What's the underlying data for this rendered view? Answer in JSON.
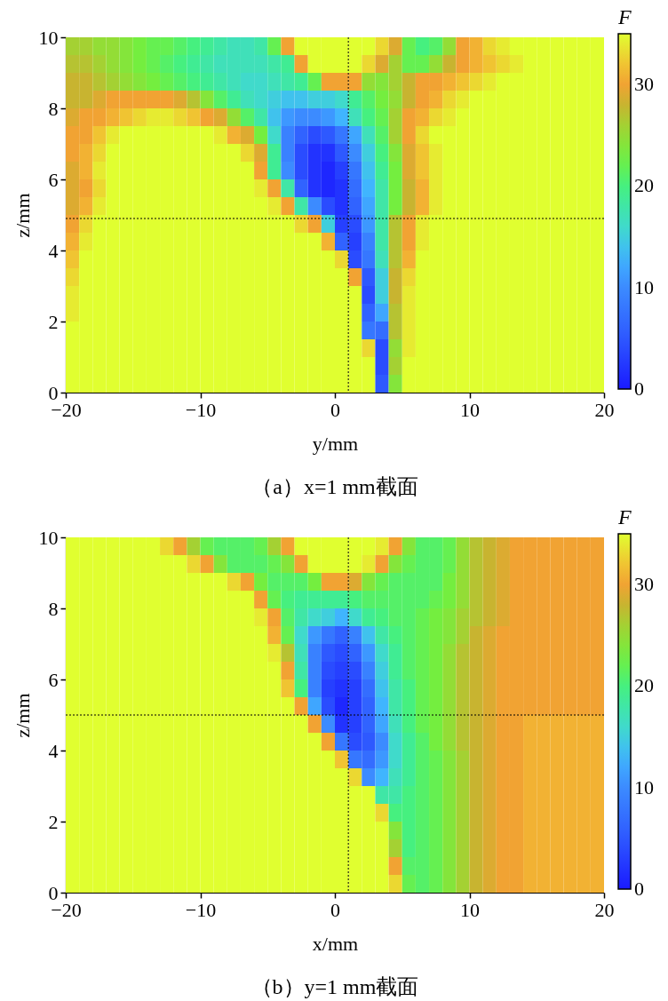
{
  "chart_data": [
    {
      "type": "heatmap",
      "title": "（a）x=1 mm截面",
      "xlabel": "y/mm",
      "ylabel": "z/mm",
      "clabel": "F",
      "x": [
        -19.5,
        -18.5,
        -17.5,
        -16.5,
        -15.5,
        -14.5,
        -13.5,
        -12.5,
        -11.5,
        -10.5,
        -9.5,
        -8.5,
        -7.5,
        -6.5,
        -5.5,
        -4.5,
        -3.5,
        -2.5,
        -1.5,
        -0.5,
        0.5,
        1.5,
        2.5,
        3.5,
        4.5,
        5.5,
        6.5,
        7.5,
        8.5,
        9.5,
        10.5,
        11.5,
        12.5,
        13.5,
        14.5,
        15.5,
        16.5,
        17.5,
        18.5,
        19.5
      ],
      "y": [
        9.75,
        9.25,
        8.75,
        8.25,
        7.75,
        7.25,
        6.75,
        6.25,
        5.75,
        5.25,
        4.75,
        4.25,
        3.75,
        3.25,
        2.75,
        2.25,
        1.75,
        1.25,
        0.75,
        0.25
      ],
      "xlim": [
        -20,
        20
      ],
      "ylim": [
        0,
        10
      ],
      "xticks": [
        -20,
        -10,
        0,
        10,
        20
      ],
      "yticks": [
        0,
        2,
        4,
        6,
        8,
        10
      ],
      "clim": [
        0,
        35
      ],
      "cticks": [
        0,
        10,
        20,
        30
      ],
      "ref_lines": [
        {
          "axis": "x",
          "value": 1,
          "line_style": "dotted",
          "color": "#000000"
        },
        {
          "axis": "y",
          "value": 4.9,
          "line_style": "dotted",
          "color": "#000000"
        }
      ],
      "cells": [
        [
          26,
          26,
          25,
          25,
          24,
          23,
          22,
          22,
          21,
          20,
          19,
          18,
          17,
          17,
          18,
          22,
          30,
          35,
          35,
          35,
          35,
          35,
          35,
          33,
          29,
          22,
          20,
          21,
          25,
          30,
          31,
          33,
          34,
          35,
          35,
          35,
          35,
          35,
          35,
          35
        ],
        [
          27,
          27,
          26,
          25,
          24,
          23,
          22,
          21,
          20,
          19,
          18,
          17,
          17,
          17,
          17,
          18,
          19,
          30,
          35,
          35,
          35,
          35,
          33,
          29,
          26,
          22,
          22,
          25,
          28,
          30,
          31,
          32,
          33,
          34,
          35,
          35,
          35,
          35,
          35,
          35
        ],
        [
          28,
          28,
          27,
          26,
          25,
          24,
          23,
          22,
          21,
          20,
          19,
          18,
          17,
          16,
          16,
          17,
          18,
          19,
          22,
          30,
          30,
          30,
          25,
          24,
          26,
          28,
          30,
          30,
          31,
          32,
          33,
          34,
          35,
          35,
          35,
          35,
          35,
          35,
          35,
          35
        ],
        [
          28,
          28,
          29,
          30,
          30,
          30,
          30,
          30,
          29,
          27,
          24,
          21,
          19,
          17,
          16,
          15,
          14,
          14,
          15,
          15,
          16,
          19,
          21,
          23,
          25,
          28,
          30,
          31,
          33,
          34,
          35,
          35,
          35,
          35,
          35,
          35,
          35,
          35,
          35,
          35
        ],
        [
          29,
          30,
          30,
          31,
          32,
          33,
          34,
          34,
          33,
          32,
          30,
          29,
          25,
          21,
          18,
          14,
          11,
          10,
          10,
          11,
          13,
          17,
          20,
          22,
          26,
          30,
          31,
          33,
          34,
          35,
          35,
          35,
          35,
          35,
          35,
          35,
          35,
          35,
          35,
          35
        ],
        [
          30,
          30,
          32,
          34,
          35,
          35,
          35,
          35,
          35,
          35,
          35,
          34,
          31,
          29,
          23,
          16,
          9,
          6,
          4,
          5,
          8,
          12,
          17,
          21,
          26,
          30,
          33,
          35,
          35,
          35,
          35,
          35,
          35,
          35,
          35,
          35,
          35,
          35,
          35,
          35
        ],
        [
          30,
          31,
          33,
          35,
          35,
          35,
          35,
          35,
          35,
          35,
          35,
          35,
          35,
          33,
          29,
          19,
          9,
          4,
          2,
          2,
          5,
          10,
          15,
          20,
          24,
          29,
          32,
          34,
          35,
          35,
          35,
          35,
          35,
          35,
          35,
          35,
          35,
          35,
          35,
          35
        ],
        [
          29,
          31,
          34,
          35,
          35,
          35,
          35,
          35,
          35,
          35,
          35,
          35,
          35,
          35,
          30,
          19,
          10,
          4,
          2,
          1,
          3,
          8,
          14,
          19,
          23,
          29,
          32,
          34,
          35,
          35,
          35,
          35,
          35,
          35,
          35,
          35,
          35,
          35,
          35,
          35
        ],
        [
          29,
          30,
          33,
          35,
          35,
          35,
          35,
          35,
          35,
          35,
          35,
          35,
          35,
          35,
          34,
          30,
          18,
          6,
          2,
          1,
          2,
          7,
          13,
          18,
          23,
          28,
          31,
          34,
          35,
          35,
          35,
          35,
          35,
          35,
          35,
          35,
          35,
          35,
          35,
          35
        ],
        [
          29,
          31,
          34,
          35,
          35,
          35,
          35,
          35,
          35,
          35,
          35,
          35,
          35,
          35,
          35,
          34,
          30,
          18,
          10,
          4,
          2,
          6,
          12,
          18,
          23,
          28,
          31,
          34,
          35,
          35,
          35,
          35,
          35,
          35,
          35,
          35,
          35,
          35,
          35,
          35
        ],
        [
          30,
          33,
          35,
          35,
          35,
          35,
          35,
          35,
          35,
          35,
          35,
          35,
          35,
          35,
          35,
          35,
          35,
          33,
          30,
          15,
          3,
          4,
          11,
          18,
          27,
          30,
          34,
          35,
          35,
          35,
          35,
          35,
          35,
          35,
          35,
          35,
          35,
          35,
          35,
          35
        ],
        [
          31,
          34,
          35,
          35,
          35,
          35,
          35,
          35,
          35,
          35,
          35,
          35,
          35,
          35,
          35,
          35,
          35,
          35,
          35,
          31,
          6,
          3,
          9,
          18,
          27,
          30,
          34,
          35,
          35,
          35,
          35,
          35,
          35,
          35,
          35,
          35,
          35,
          35,
          35,
          35
        ],
        [
          32,
          35,
          35,
          35,
          35,
          35,
          35,
          35,
          35,
          35,
          35,
          35,
          35,
          35,
          35,
          35,
          35,
          35,
          35,
          35,
          33,
          4,
          8,
          17,
          27,
          31,
          35,
          35,
          35,
          35,
          35,
          35,
          35,
          35,
          35,
          35,
          35,
          35,
          35,
          35
        ],
        [
          33,
          35,
          35,
          35,
          35,
          35,
          35,
          35,
          35,
          35,
          35,
          35,
          35,
          35,
          35,
          35,
          35,
          35,
          35,
          35,
          35,
          30,
          5,
          15,
          28,
          33,
          35,
          35,
          35,
          35,
          35,
          35,
          35,
          35,
          35,
          35,
          35,
          35,
          35,
          35
        ],
        [
          34,
          35,
          35,
          35,
          35,
          35,
          35,
          35,
          35,
          35,
          35,
          35,
          35,
          35,
          35,
          35,
          35,
          35,
          35,
          35,
          35,
          35,
          4,
          15,
          28,
          34,
          35,
          35,
          35,
          35,
          35,
          35,
          35,
          35,
          35,
          35,
          35,
          35,
          35,
          35
        ],
        [
          34,
          35,
          35,
          35,
          35,
          35,
          35,
          35,
          35,
          35,
          35,
          35,
          35,
          35,
          35,
          35,
          35,
          35,
          35,
          35,
          35,
          35,
          6,
          12,
          27,
          34,
          35,
          35,
          35,
          35,
          35,
          35,
          35,
          35,
          35,
          35,
          35,
          35,
          35,
          35
        ],
        [
          35,
          35,
          35,
          35,
          35,
          35,
          35,
          35,
          35,
          35,
          35,
          35,
          35,
          35,
          35,
          35,
          35,
          35,
          35,
          35,
          35,
          35,
          8,
          7,
          27,
          34,
          35,
          35,
          35,
          35,
          35,
          35,
          35,
          35,
          35,
          35,
          35,
          35,
          35,
          35
        ],
        [
          35,
          35,
          35,
          35,
          35,
          35,
          35,
          35,
          35,
          35,
          35,
          35,
          35,
          35,
          35,
          35,
          35,
          35,
          35,
          35,
          35,
          35,
          33,
          4,
          25,
          34,
          35,
          35,
          35,
          35,
          35,
          35,
          35,
          35,
          35,
          35,
          35,
          35,
          35,
          35
        ],
        [
          35,
          35,
          35,
          35,
          35,
          35,
          35,
          35,
          35,
          35,
          35,
          35,
          35,
          35,
          35,
          35,
          35,
          35,
          35,
          35,
          35,
          35,
          35,
          4,
          26,
          35,
          35,
          35,
          35,
          35,
          35,
          35,
          35,
          35,
          35,
          35,
          35,
          35,
          35,
          35
        ],
        [
          35,
          35,
          35,
          35,
          35,
          35,
          35,
          35,
          35,
          35,
          35,
          35,
          35,
          35,
          35,
          35,
          35,
          35,
          35,
          35,
          35,
          35,
          35,
          5,
          24,
          35,
          35,
          35,
          35,
          35,
          35,
          35,
          35,
          35,
          35,
          35,
          35,
          35,
          35,
          35
        ]
      ]
    },
    {
      "type": "heatmap",
      "title": "（b）y=1 mm截面",
      "xlabel": "x/mm",
      "ylabel": "z/mm",
      "clabel": "F",
      "x": [
        -19.5,
        -18.5,
        -17.5,
        -16.5,
        -15.5,
        -14.5,
        -13.5,
        -12.5,
        -11.5,
        -10.5,
        -9.5,
        -8.5,
        -7.5,
        -6.5,
        -5.5,
        -4.5,
        -3.5,
        -2.5,
        -1.5,
        -0.5,
        0.5,
        1.5,
        2.5,
        3.5,
        4.5,
        5.5,
        6.5,
        7.5,
        8.5,
        9.5,
        10.5,
        11.5,
        12.5,
        13.5,
        14.5,
        15.5,
        16.5,
        17.5,
        18.5,
        19.5
      ],
      "y": [
        9.75,
        9.25,
        8.75,
        8.25,
        7.75,
        7.25,
        6.75,
        6.25,
        5.75,
        5.25,
        4.75,
        4.25,
        3.75,
        3.25,
        2.75,
        2.25,
        1.75,
        1.25,
        0.75,
        0.25
      ],
      "xlim": [
        -20,
        20
      ],
      "ylim": [
        0,
        10
      ],
      "xticks": [
        -20,
        -10,
        0,
        10,
        20
      ],
      "yticks": [
        0,
        2,
        4,
        6,
        8,
        10
      ],
      "clim": [
        0,
        35
      ],
      "cticks": [
        0,
        10,
        20,
        30
      ],
      "ref_lines": [
        {
          "axis": "x",
          "value": 1,
          "line_style": "dotted",
          "color": "#000000"
        },
        {
          "axis": "y",
          "value": 5,
          "line_style": "dotted",
          "color": "#000000"
        }
      ],
      "cells": [
        [
          35,
          35,
          35,
          35,
          35,
          35,
          35,
          33,
          30,
          26,
          22,
          21,
          21,
          21,
          22,
          26,
          30,
          35,
          35,
          35,
          35,
          35,
          35,
          34,
          30,
          24,
          21,
          21,
          22,
          25,
          27,
          28,
          29,
          30,
          30,
          30,
          30,
          30,
          30,
          30
        ],
        [
          35,
          35,
          35,
          35,
          35,
          35,
          35,
          35,
          35,
          33,
          30,
          24,
          21,
          21,
          21,
          22,
          24,
          30,
          35,
          35,
          35,
          35,
          34,
          30,
          24,
          22,
          21,
          21,
          22,
          25,
          27,
          28,
          29,
          30,
          30,
          30,
          30,
          30,
          30,
          30
        ],
        [
          35,
          35,
          35,
          35,
          35,
          35,
          35,
          35,
          35,
          35,
          35,
          35,
          33,
          30,
          23,
          21,
          21,
          21,
          23,
          30,
          30,
          29,
          24,
          22,
          21,
          21,
          21,
          21,
          23,
          25,
          27,
          28,
          29,
          30,
          30,
          30,
          30,
          30,
          30,
          30
        ],
        [
          35,
          35,
          35,
          35,
          35,
          35,
          35,
          35,
          35,
          35,
          35,
          35,
          35,
          35,
          30,
          22,
          20,
          19,
          19,
          19,
          19,
          20,
          21,
          21,
          21,
          21,
          21,
          22,
          23,
          25,
          27,
          28,
          29,
          30,
          30,
          30,
          30,
          30,
          30,
          30
        ],
        [
          35,
          35,
          35,
          35,
          35,
          35,
          35,
          35,
          35,
          35,
          35,
          35,
          35,
          35,
          34,
          30,
          21,
          18,
          16,
          15,
          13,
          16,
          19,
          20,
          21,
          21,
          22,
          23,
          24,
          26,
          27,
          28,
          29,
          30,
          30,
          30,
          30,
          30,
          30,
          30
        ],
        [
          35,
          35,
          35,
          35,
          35,
          35,
          35,
          35,
          35,
          35,
          35,
          35,
          35,
          35,
          35,
          31,
          22,
          16,
          11,
          8,
          6,
          9,
          14,
          18,
          20,
          21,
          22,
          23,
          24,
          26,
          28,
          29,
          30,
          30,
          30,
          30,
          30,
          30,
          30,
          30
        ],
        [
          35,
          35,
          35,
          35,
          35,
          35,
          35,
          35,
          35,
          35,
          35,
          35,
          35,
          35,
          35,
          34,
          27,
          17,
          9,
          5,
          4,
          6,
          11,
          16,
          19,
          21,
          22,
          23,
          25,
          27,
          28,
          29,
          30,
          30,
          30,
          30,
          30,
          30,
          30,
          30
        ],
        [
          35,
          35,
          35,
          35,
          35,
          35,
          35,
          35,
          35,
          35,
          35,
          35,
          35,
          35,
          35,
          35,
          30,
          18,
          9,
          4,
          3,
          4,
          9,
          15,
          19,
          21,
          22,
          23,
          25,
          27,
          28,
          29,
          30,
          30,
          30,
          30,
          30,
          30,
          30,
          30
        ],
        [
          35,
          35,
          35,
          35,
          35,
          35,
          35,
          35,
          35,
          35,
          35,
          35,
          35,
          35,
          35,
          35,
          32,
          20,
          9,
          3,
          2,
          3,
          7,
          14,
          18,
          20,
          22,
          23,
          25,
          27,
          28,
          29,
          30,
          30,
          30,
          30,
          30,
          30,
          30,
          30
        ],
        [
          35,
          35,
          35,
          35,
          35,
          35,
          35,
          35,
          35,
          35,
          35,
          35,
          35,
          35,
          35,
          35,
          35,
          30,
          12,
          4,
          1,
          3,
          6,
          13,
          18,
          20,
          22,
          23,
          25,
          27,
          28,
          29,
          30,
          30,
          30,
          30,
          30,
          30,
          30,
          30
        ],
        [
          35,
          35,
          35,
          35,
          35,
          35,
          35,
          35,
          35,
          35,
          35,
          35,
          35,
          35,
          35,
          35,
          35,
          35,
          30,
          10,
          2,
          3,
          6,
          12,
          17,
          20,
          22,
          23,
          25,
          27,
          28,
          29,
          30,
          30,
          31,
          31,
          31,
          31,
          31,
          31
        ],
        [
          35,
          35,
          35,
          35,
          35,
          35,
          35,
          35,
          35,
          35,
          35,
          35,
          35,
          35,
          35,
          35,
          35,
          35,
          35,
          30,
          8,
          4,
          5,
          10,
          16,
          19,
          21,
          23,
          25,
          27,
          28,
          29,
          30,
          30,
          31,
          31,
          31,
          31,
          31,
          31
        ],
        [
          35,
          35,
          35,
          35,
          35,
          35,
          35,
          35,
          35,
          35,
          35,
          35,
          35,
          35,
          35,
          35,
          35,
          35,
          35,
          35,
          32,
          8,
          7,
          11,
          16,
          19,
          21,
          22,
          24,
          26,
          28,
          29,
          30,
          30,
          31,
          31,
          31,
          31,
          31,
          31
        ],
        [
          35,
          35,
          35,
          35,
          35,
          35,
          35,
          35,
          35,
          35,
          35,
          35,
          35,
          35,
          35,
          35,
          35,
          35,
          35,
          35,
          35,
          33,
          10,
          13,
          17,
          19,
          21,
          22,
          24,
          26,
          28,
          29,
          30,
          30,
          31,
          31,
          31,
          31,
          31,
          31
        ],
        [
          35,
          35,
          35,
          35,
          35,
          35,
          35,
          35,
          35,
          35,
          35,
          35,
          35,
          35,
          35,
          35,
          35,
          35,
          35,
          35,
          35,
          35,
          35,
          18,
          18,
          20,
          21,
          22,
          24,
          26,
          28,
          29,
          30,
          30,
          31,
          31,
          31,
          31,
          31,
          31
        ],
        [
          35,
          35,
          35,
          35,
          35,
          35,
          35,
          35,
          35,
          35,
          35,
          35,
          35,
          35,
          35,
          35,
          35,
          35,
          35,
          35,
          35,
          35,
          35,
          33,
          20,
          20,
          21,
          22,
          24,
          26,
          28,
          29,
          30,
          30,
          31,
          31,
          31,
          31,
          31,
          31
        ],
        [
          35,
          35,
          35,
          35,
          35,
          35,
          35,
          35,
          35,
          35,
          35,
          35,
          35,
          35,
          35,
          35,
          35,
          35,
          35,
          35,
          35,
          35,
          35,
          35,
          24,
          20,
          21,
          22,
          24,
          26,
          28,
          29,
          30,
          30,
          31,
          31,
          31,
          31,
          31,
          31
        ],
        [
          35,
          35,
          35,
          35,
          35,
          35,
          35,
          35,
          35,
          35,
          35,
          35,
          35,
          35,
          35,
          35,
          35,
          35,
          35,
          35,
          35,
          35,
          35,
          35,
          26,
          20,
          21,
          22,
          24,
          26,
          28,
          29,
          30,
          30,
          31,
          31,
          31,
          31,
          31,
          31
        ],
        [
          35,
          35,
          35,
          35,
          35,
          35,
          35,
          35,
          35,
          35,
          35,
          35,
          35,
          35,
          35,
          35,
          35,
          35,
          35,
          35,
          35,
          35,
          35,
          35,
          30,
          21,
          21,
          22,
          24,
          26,
          28,
          29,
          30,
          30,
          31,
          31,
          31,
          31,
          31,
          31
        ],
        [
          35,
          35,
          35,
          35,
          35,
          35,
          35,
          35,
          35,
          35,
          35,
          35,
          35,
          35,
          35,
          35,
          35,
          35,
          35,
          35,
          35,
          35,
          35,
          35,
          33,
          22,
          21,
          22,
          24,
          26,
          28,
          29,
          30,
          30,
          31,
          31,
          31,
          31,
          31,
          31
        ]
      ]
    }
  ]
}
